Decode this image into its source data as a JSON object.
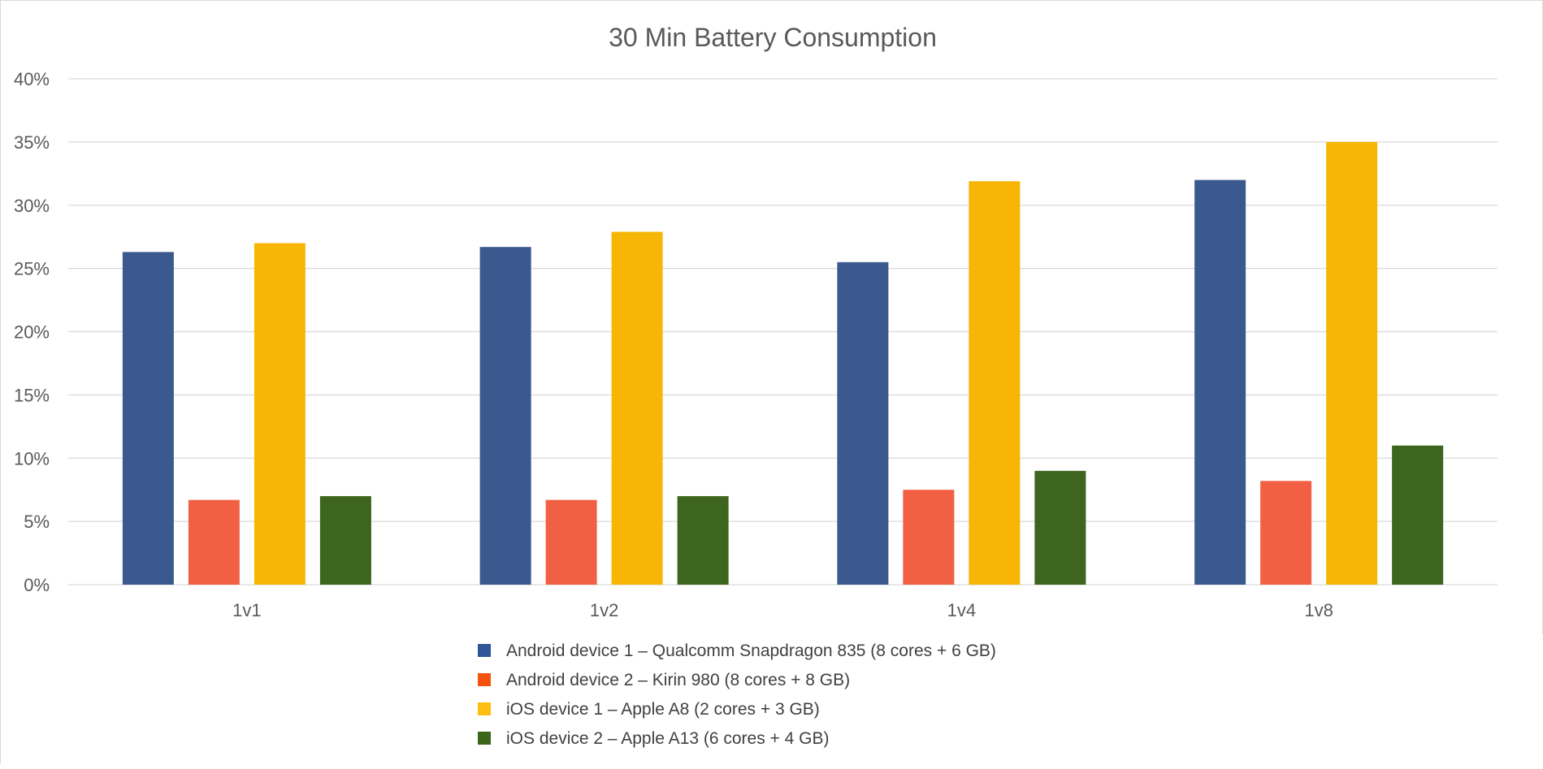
{
  "chart_data": {
    "type": "bar",
    "title": "30 Min Battery Consumption",
    "xlabel": "",
    "ylabel": "",
    "categories": [
      "1v1",
      "1v2",
      "1v4",
      "1v8"
    ],
    "ylim": [
      0,
      40
    ],
    "ytick_step": 5,
    "y_tick_labels": [
      "0%",
      "5%",
      "10%",
      "15%",
      "20%",
      "25%",
      "30%",
      "35%",
      "40%"
    ],
    "grid": true,
    "legend_position": "bottom",
    "series": [
      {
        "name": "Android device 1 – Qualcomm Snapdragon 835 (8 cores + 6 GB)",
        "color": "#3a5a8f",
        "legend_color": "#2e5597",
        "values": [
          26.3,
          26.7,
          25.5,
          32
        ]
      },
      {
        "name": "Android device 2 – Kirin 980 (8 cores + 8 GB)",
        "color": "#f26044",
        "legend_color": "#f5520f",
        "values": [
          6.7,
          6.7,
          7.5,
          8.2
        ]
      },
      {
        "name": "iOS device 1 – Apple A8 (2 cores + 3 GB)",
        "color": "#f7b506",
        "legend_color": "#fdbf0f",
        "values": [
          27,
          27.9,
          31.9,
          35
        ]
      },
      {
        "name": "iOS device 2 – Apple A13 (6 cores + 4 GB)",
        "color": "#3d651d",
        "legend_color": "#3b6519",
        "values": [
          7,
          7,
          9,
          11
        ]
      }
    ]
  }
}
